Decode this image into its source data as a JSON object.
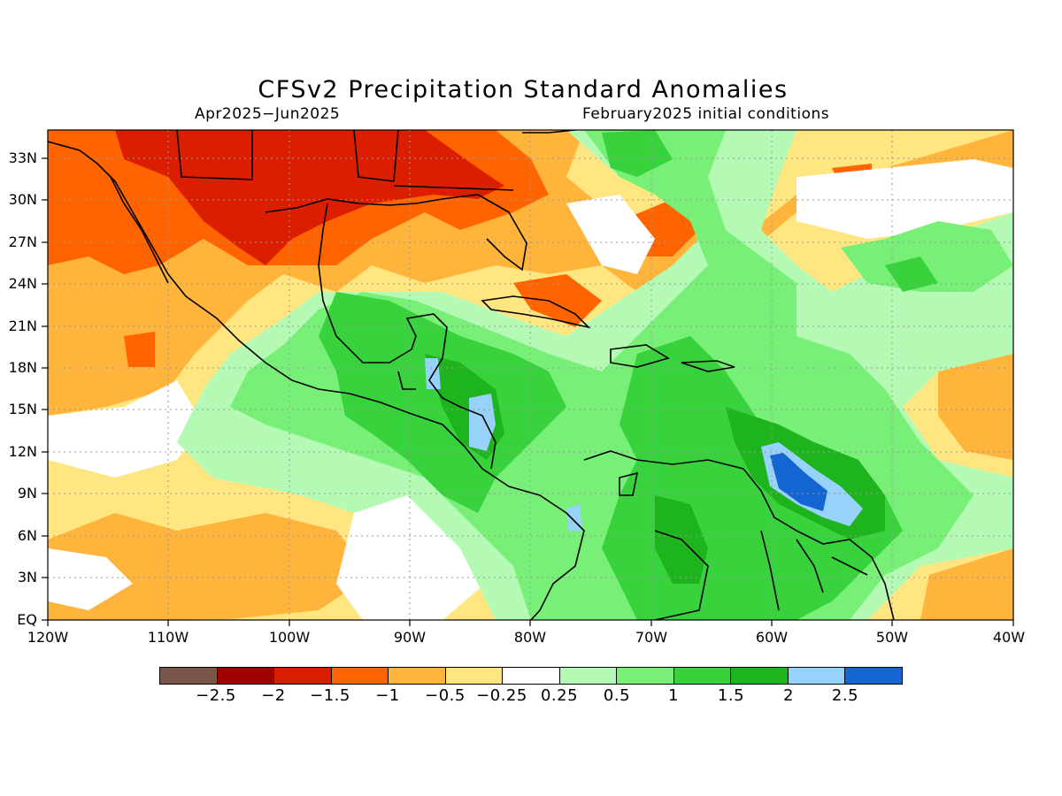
{
  "header": {
    "title": "CFSv2 Precipitation Standard Anomalies",
    "period": "Apr2025−Jun2025",
    "init": "February2025 initial conditions"
  },
  "axes": {
    "lat_labels": [
      "33N",
      "30N",
      "27N",
      "24N",
      "21N",
      "18N",
      "15N",
      "12N",
      "9N",
      "6N",
      "3N",
      "EQ"
    ],
    "lon_labels": [
      "120W",
      "110W",
      "100W",
      "90W",
      "80W",
      "70W",
      "60W",
      "50W",
      "40W"
    ]
  },
  "legend": {
    "labels": [
      "−2.5",
      "−2",
      "−1.5",
      "−1",
      "−0.5",
      "−0.25",
      "0.25",
      "0.5",
      "1",
      "1.5",
      "2",
      "2.5"
    ],
    "colors": [
      "#7a5548",
      "#a00000",
      "#dc1e00",
      "#ff6400",
      "#ffb43c",
      "#ffe680",
      "#ffffff",
      "#b4fab4",
      "#78f078",
      "#37d23c",
      "#1eb41e",
      "#96d2fa",
      "#1464d2"
    ]
  },
  "map": {
    "background": "#ffe680",
    "extent": {
      "lon": [
        -120,
        -40
      ],
      "lat": [
        0,
        35
      ]
    }
  }
}
